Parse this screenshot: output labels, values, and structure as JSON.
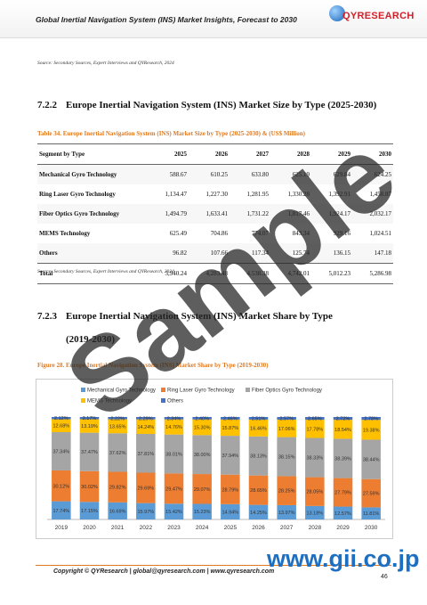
{
  "header": {
    "title": "Global Inertial Navigation System (INS) Market Insights, Forecast to 2030",
    "logo": "QYRESEARCH"
  },
  "source_1": "Source: Secondary Sources, Expert Interviews and QYResearch, 2024",
  "section_1": {
    "number": "7.2.2",
    "title": "Europe Inertial Navigation System (INS) Market Size by Type (2025-2030)"
  },
  "table": {
    "caption": "Table 34.   Europe Inertial Navigation System (INS) Market Size by Type (2025-2030) & (US$ Million)",
    "columns": [
      "Segment by Type",
      "2025",
      "2026",
      "2027",
      "2028",
      "2029",
      "2030"
    ],
    "rows": [
      [
        "Mechanical Gyro Technology",
        "588.67",
        "610.25",
        "633.80",
        "625.19",
        "629.84",
        "624.25"
      ],
      [
        "Ring Laser Gyro Technology",
        "1,134.47",
        "1,227.30",
        "1,281.95",
        "1,330.28",
        "1,392.91",
        "1,458.87"
      ],
      [
        "Fiber Optics Gyro Technology",
        "1,494.79",
        "1,633.41",
        "1,731.22",
        "1,817.46",
        "1,924.17",
        "2,032.17"
      ],
      [
        "MEMS Technology",
        "625.49",
        "704.86",
        "774.07",
        "843.34",
        "929.16",
        "1,024.51"
      ],
      [
        "Others",
        "96.82",
        "107.66",
        "117.34",
        "125.74",
        "136.15",
        "147.18"
      ],
      [
        "Total",
        "3,940.24",
        "4,283.48",
        "4,538.38",
        "4,742.01",
        "5,012.23",
        "5,286.98"
      ]
    ]
  },
  "source_2": "Source: Secondary Sources, Expert Interviews and QYResearch, 2024",
  "section_2": {
    "number": "7.2.3",
    "title": "Europe Inertial Navigation System (INS) Market Share by Type (2019-2030)"
  },
  "figure_caption": "Figure 28.   Europe Inertial Navigation System (INS) Market Share by Type (2019-2030)",
  "chart_data": {
    "type": "stacked_bar",
    "categories": [
      "2019",
      "2020",
      "2021",
      "2022",
      "2023",
      "2024",
      "2025",
      "2026",
      "2027",
      "2028",
      "2029",
      "2030"
    ],
    "ylim": [
      0,
      100
    ],
    "series": [
      {
        "name": "Mechanical Gyro Technology",
        "color": "#5b9bd5",
        "values": [
          17.74,
          17.15,
          16.69,
          15.97,
          15.42,
          15.23,
          14.94,
          14.25,
          13.97,
          13.18,
          12.57,
          11.81
        ],
        "value_labels": [
          "17.74%",
          "17.15%",
          "16.69%",
          "15.97%",
          "15.42%",
          "15.23%",
          "14.94%",
          "14.25%",
          "13.97%",
          "13.18%",
          "12.57%",
          "11.81%"
        ]
      },
      {
        "name": "Ring Laser Gyro Technology",
        "color": "#ed7d31",
        "values": [
          30.12,
          30.02,
          29.82,
          29.69,
          29.47,
          29.07,
          28.79,
          28.65,
          28.25,
          28.05,
          27.79,
          27.59
        ],
        "value_labels": [
          "30.12%",
          "30.02%",
          "29.82%",
          "29.69%",
          "29.47%",
          "29.07%",
          "28.79%",
          "28.65%",
          "28.25%",
          "28.05%",
          "27.79%",
          "27.59%"
        ]
      },
      {
        "name": "Fiber Optics Gyro Technology",
        "color": "#a5a5a5",
        "values": [
          37.34,
          37.47,
          37.62,
          37.81,
          38.01,
          38.0,
          37.94,
          38.13,
          38.15,
          38.33,
          38.39,
          38.44
        ],
        "value_labels": [
          "37.34%",
          "37.47%",
          "37.62%",
          "37.81%",
          "38.01%",
          "38.00%",
          "37.94%",
          "38.13%",
          "38.15%",
          "38.33%",
          "38.39%",
          "38.44%"
        ]
      },
      {
        "name": "MEMS Technology",
        "color": "#ffc000",
        "values": [
          12.68,
          13.19,
          13.65,
          14.24,
          14.76,
          15.3,
          15.87,
          16.46,
          17.06,
          17.78,
          18.54,
          19.38
        ],
        "value_labels": [
          "12.68%",
          "13.19%",
          "13.65%",
          "14.24%",
          "14.76%",
          "15.30%",
          "15.87%",
          "16.46%",
          "17.06%",
          "17.78%",
          "18.54%",
          "19.38%"
        ]
      },
      {
        "name": "Others",
        "color": "#4472c4",
        "values": [
          2.12,
          2.17,
          2.22,
          2.29,
          2.34,
          2.4,
          2.46,
          2.51,
          2.57,
          2.65,
          2.72,
          2.78
        ],
        "value_labels": [
          "2.12%",
          "2.17%",
          "2.22%",
          "2.29%",
          "2.34%",
          "2.40%",
          "2.46%",
          "2.51%",
          "2.57%",
          "2.65%",
          "2.72%",
          "2.78%"
        ]
      }
    ]
  },
  "footer": {
    "copyright": "Copyright © QYResearch | global@qyresearch.com | www.qyresearch.com",
    "page": "46"
  },
  "watermark": {
    "text": "Sample",
    "site": "www.gii.co.jp"
  }
}
